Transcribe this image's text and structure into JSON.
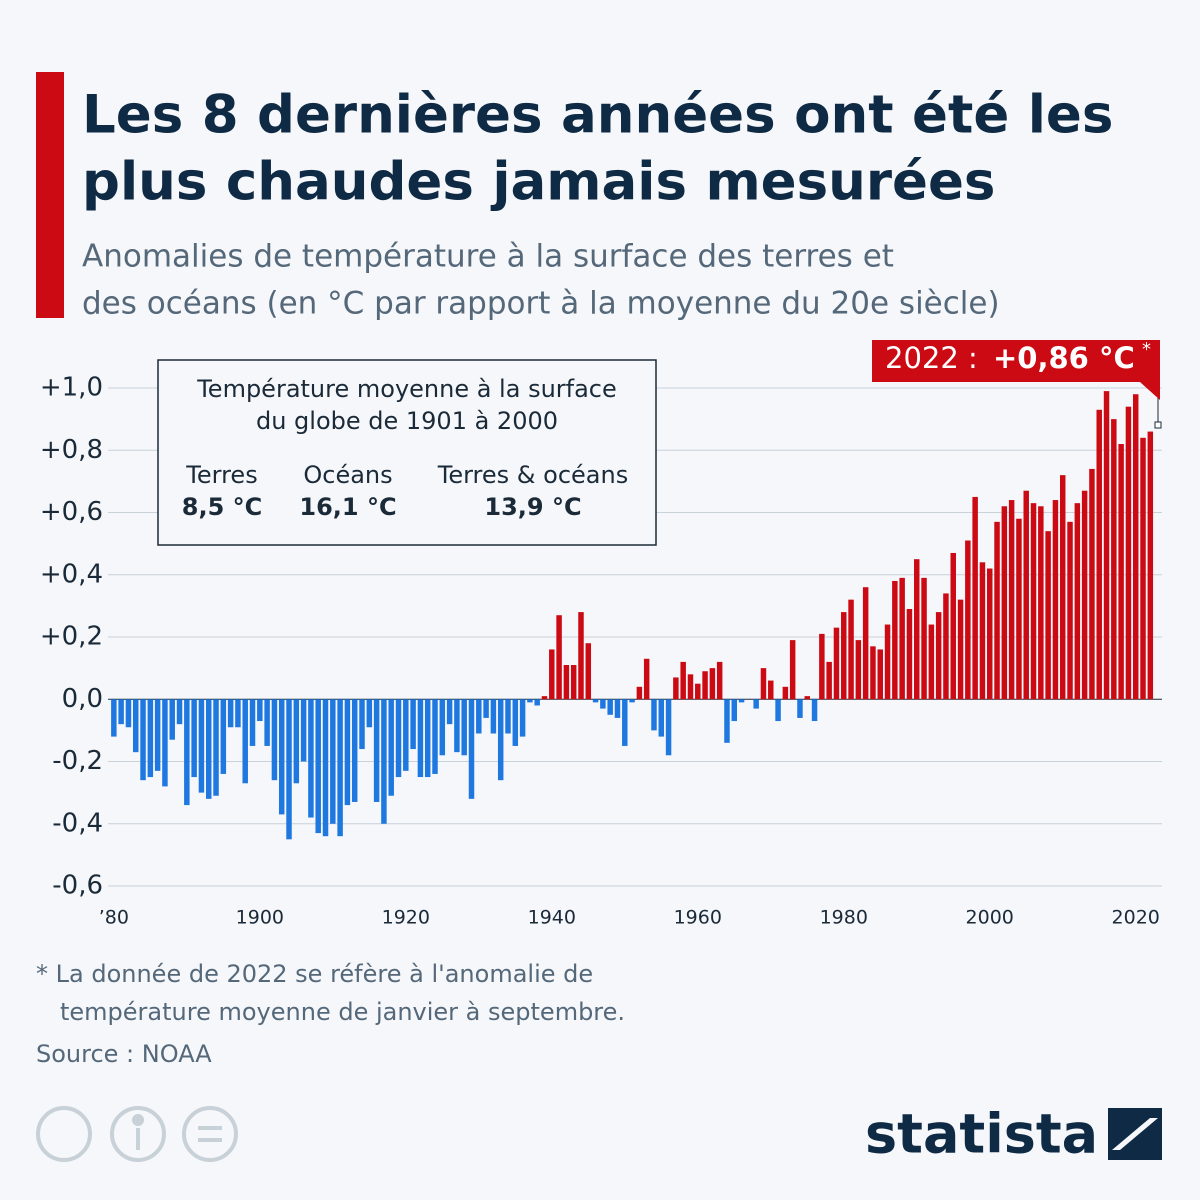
{
  "chart_data": {
    "type": "bar",
    "title": [
      "Les 8 dernières années ont été les",
      "plus chaudes jamais mesurées"
    ],
    "subtitle": [
      "Anomalies de température à la surface des terres et",
      "des océans (en °C par rapport à la moyenne du 20e siècle)"
    ],
    "x": [
      1880,
      1881,
      1882,
      1883,
      1884,
      1885,
      1886,
      1887,
      1888,
      1889,
      1890,
      1891,
      1892,
      1893,
      1894,
      1895,
      1896,
      1897,
      1898,
      1899,
      1900,
      1901,
      1902,
      1903,
      1904,
      1905,
      1906,
      1907,
      1908,
      1909,
      1910,
      1911,
      1912,
      1913,
      1914,
      1915,
      1916,
      1917,
      1918,
      1919,
      1920,
      1921,
      1922,
      1923,
      1924,
      1925,
      1926,
      1927,
      1928,
      1929,
      1930,
      1931,
      1932,
      1933,
      1934,
      1935,
      1936,
      1937,
      1938,
      1939,
      1940,
      1941,
      1942,
      1943,
      1944,
      1945,
      1946,
      1947,
      1948,
      1949,
      1950,
      1951,
      1952,
      1953,
      1954,
      1955,
      1956,
      1957,
      1958,
      1959,
      1960,
      1961,
      1962,
      1963,
      1964,
      1965,
      1966,
      1967,
      1968,
      1969,
      1970,
      1971,
      1972,
      1973,
      1974,
      1975,
      1976,
      1977,
      1978,
      1979,
      1980,
      1981,
      1982,
      1983,
      1984,
      1985,
      1986,
      1987,
      1988,
      1989,
      1990,
      1991,
      1992,
      1993,
      1994,
      1995,
      1996,
      1997,
      1998,
      1999,
      2000,
      2001,
      2002,
      2003,
      2004,
      2005,
      2006,
      2007,
      2008,
      2009,
      2010,
      2011,
      2012,
      2013,
      2014,
      2015,
      2016,
      2017,
      2018,
      2019,
      2020,
      2021,
      2022
    ],
    "values": [
      -0.12,
      -0.08,
      -0.09,
      -0.17,
      -0.26,
      -0.25,
      -0.23,
      -0.28,
      -0.13,
      -0.08,
      -0.34,
      -0.25,
      -0.3,
      -0.32,
      -0.31,
      -0.24,
      -0.09,
      -0.09,
      -0.27,
      -0.15,
      -0.07,
      -0.15,
      -0.26,
      -0.37,
      -0.45,
      -0.27,
      -0.2,
      -0.38,
      -0.43,
      -0.44,
      -0.4,
      -0.44,
      -0.34,
      -0.33,
      -0.16,
      -0.09,
      -0.33,
      -0.4,
      -0.31,
      -0.25,
      -0.23,
      -0.16,
      -0.25,
      -0.25,
      -0.24,
      -0.18,
      -0.08,
      -0.17,
      -0.18,
      -0.32,
      -0.11,
      -0.06,
      -0.11,
      -0.26,
      -0.11,
      -0.15,
      -0.12,
      -0.01,
      -0.02,
      0.01,
      0.16,
      0.27,
      0.11,
      0.11,
      0.28,
      0.18,
      -0.01,
      -0.03,
      -0.05,
      -0.06,
      -0.15,
      -0.01,
      0.04,
      0.13,
      -0.1,
      -0.12,
      -0.18,
      0.07,
      0.12,
      0.08,
      0.05,
      0.09,
      0.1,
      0.12,
      -0.14,
      -0.07,
      -0.01,
      0.0,
      -0.03,
      0.1,
      0.06,
      -0.07,
      0.04,
      0.19,
      -0.06,
      0.01,
      -0.07,
      0.21,
      0.12,
      0.23,
      0.28,
      0.32,
      0.19,
      0.36,
      0.17,
      0.16,
      0.24,
      0.38,
      0.39,
      0.29,
      0.45,
      0.39,
      0.24,
      0.28,
      0.34,
      0.47,
      0.32,
      0.51,
      0.65,
      0.44,
      0.42,
      0.57,
      0.62,
      0.64,
      0.58,
      0.67,
      0.63,
      0.62,
      0.54,
      0.64,
      0.72,
      0.57,
      0.63,
      0.67,
      0.74,
      0.93,
      0.99,
      0.9,
      0.82,
      0.94,
      0.98,
      0.84,
      0.86
    ],
    "positive_color": "#cc0a14",
    "negative_color": "#1f78e0",
    "xlim": [
      1879.2,
      2023.6
    ],
    "xticks": [
      {
        "value": 1880,
        "label": "’80"
      },
      1900,
      1920,
      1940,
      1960,
      1980,
      2000,
      2020
    ],
    "ylim": [
      -0.6,
      1.0
    ],
    "yticks": [
      {
        "value": -0.6,
        "label": "-0,6"
      },
      {
        "value": -0.4,
        "label": "-0,4"
      },
      {
        "value": -0.2,
        "label": "-0,2"
      },
      {
        "value": 0,
        "label": "0,0"
      },
      {
        "value": 0.2,
        "label": "+0,2"
      },
      {
        "value": 0.4,
        "label": "+0,4"
      },
      {
        "value": 0.6,
        "label": "+0,6"
      },
      {
        "value": 0.8,
        "label": "+0,8"
      },
      {
        "value": 1.0,
        "label": "+1,0"
      }
    ],
    "grid": true,
    "callout": {
      "year": "2022 :",
      "value": "+0,86 °C",
      "mark": "*"
    },
    "info_box": {
      "title": [
        "Température moyenne à la surface",
        "du globe de 1901 à 2000"
      ],
      "items": [
        {
          "name": "Terres",
          "value": "8,5 °C"
        },
        {
          "name": "Océans",
          "value": "16,1 °C"
        },
        {
          "name": "Terres & océans",
          "value": "13,9 °C"
        }
      ]
    },
    "footnote": [
      "* La donnée de 2022 se réfère à l'anomalie de",
      "température moyenne de janvier à septembre."
    ],
    "source": "Source : NOAA",
    "brand": "statista"
  }
}
